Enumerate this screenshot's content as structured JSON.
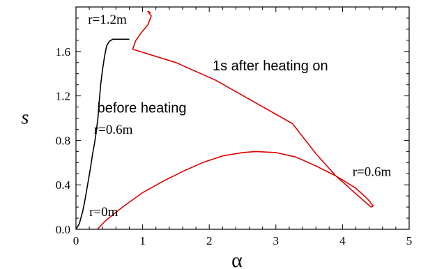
{
  "chart_data": {
    "type": "line",
    "xlabel": "α",
    "ylabel": "s",
    "xlim": [
      0,
      5
    ],
    "ylim": [
      0,
      2.0
    ],
    "x_ticks": [
      0,
      1,
      2,
      3,
      4,
      5
    ],
    "y_ticks": [
      0.0,
      0.4,
      0.8,
      1.2,
      1.6
    ],
    "x_tick_labels": [
      "0",
      "1",
      "2",
      "3",
      "4",
      "5"
    ],
    "y_tick_labels": [
      "0.0",
      "0.4",
      "0.8",
      "1.2",
      "1.6"
    ],
    "grid": false,
    "series": [
      {
        "color": "#000000",
        "points": [
          [
            0.0,
            0.0
          ],
          [
            0.05,
            0.05
          ],
          [
            0.1,
            0.16
          ],
          [
            0.14,
            0.28
          ],
          [
            0.18,
            0.42
          ],
          [
            0.22,
            0.56
          ],
          [
            0.25,
            0.68
          ],
          [
            0.28,
            0.78
          ],
          [
            0.3,
            0.86
          ],
          [
            0.33,
            1.0
          ],
          [
            0.35,
            1.16
          ],
          [
            0.37,
            1.3
          ],
          [
            0.4,
            1.44
          ],
          [
            0.43,
            1.56
          ],
          [
            0.46,
            1.65
          ],
          [
            0.5,
            1.69
          ],
          [
            0.55,
            1.71
          ],
          [
            0.8,
            1.71
          ]
        ]
      },
      {
        "color": "#dd0000",
        "points": [
          [
            0.32,
            0.0
          ],
          [
            0.45,
            0.08
          ],
          [
            0.7,
            0.2
          ],
          [
            1.0,
            0.33
          ],
          [
            1.3,
            0.43
          ],
          [
            1.6,
            0.52
          ],
          [
            1.9,
            0.6
          ],
          [
            2.2,
            0.66
          ],
          [
            2.5,
            0.69
          ],
          [
            2.7,
            0.7
          ],
          [
            3.0,
            0.69
          ],
          [
            3.3,
            0.65
          ],
          [
            3.6,
            0.57
          ],
          [
            3.9,
            0.48
          ],
          [
            4.2,
            0.37
          ],
          [
            4.38,
            0.27
          ],
          [
            4.46,
            0.21
          ],
          [
            4.43,
            0.2
          ],
          [
            4.35,
            0.24
          ],
          [
            4.2,
            0.32
          ],
          [
            4.05,
            0.4
          ],
          [
            3.9,
            0.48
          ],
          [
            3.6,
            0.68
          ],
          [
            3.25,
            0.95
          ],
          [
            2.1,
            1.34
          ],
          [
            1.5,
            1.5
          ],
          [
            0.85,
            1.62
          ],
          [
            0.9,
            1.7
          ],
          [
            0.97,
            1.76
          ],
          [
            1.08,
            1.84
          ],
          [
            1.13,
            1.92
          ],
          [
            1.08,
            1.96
          ],
          [
            1.12,
            1.95
          ]
        ]
      }
    ],
    "annotations": [
      {
        "text": "r=1.2m",
        "x": 0.18,
        "y": 1.85,
        "style": "serif"
      },
      {
        "text": "1s after heating on",
        "x": 2.05,
        "y": 1.43,
        "style": "sans"
      },
      {
        "text": "before heating",
        "x": 0.32,
        "y": 1.05,
        "style": "sans"
      },
      {
        "text": "r=0.6m",
        "x": 0.27,
        "y": 0.86,
        "style": "serif"
      },
      {
        "text": "r=0.6m",
        "x": 4.15,
        "y": 0.48,
        "style": "serif"
      },
      {
        "text": "r=0m",
        "x": 0.2,
        "y": 0.12,
        "style": "serif"
      }
    ]
  }
}
